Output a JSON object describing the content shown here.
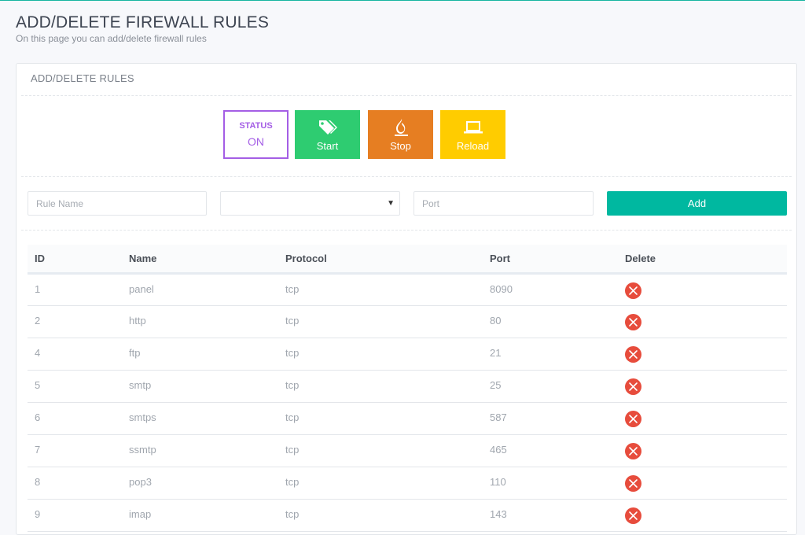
{
  "page": {
    "title": "ADD/DELETE FIREWALL RULES",
    "subtitle": "On this page you can add/delete firewall rules"
  },
  "panel": {
    "header": "ADD/DELETE RULES"
  },
  "controls": {
    "status_label": "STATUS",
    "status_value": "ON",
    "start_label": "Start",
    "stop_label": "Stop",
    "reload_label": "Reload",
    "start_icon": "tags-icon",
    "stop_icon": "fire-icon",
    "reload_icon": "laptop-icon"
  },
  "form": {
    "rule_name_placeholder": "Rule Name",
    "protocol_value": "",
    "port_placeholder": "Port",
    "add_label": "Add"
  },
  "colors": {
    "status": "#a45ee5",
    "start": "#2ecc71",
    "stop": "#e67e22",
    "reload": "#ffcc00",
    "add": "#00b8a0",
    "delete": "#e74c3c"
  },
  "table": {
    "headers": [
      "ID",
      "Name",
      "Protocol",
      "Port",
      "Delete"
    ],
    "rows": [
      {
        "id": "1",
        "name": "panel",
        "protocol": "tcp",
        "port": "8090"
      },
      {
        "id": "2",
        "name": "http",
        "protocol": "tcp",
        "port": "80"
      },
      {
        "id": "4",
        "name": "ftp",
        "protocol": "tcp",
        "port": "21"
      },
      {
        "id": "5",
        "name": "smtp",
        "protocol": "tcp",
        "port": "25"
      },
      {
        "id": "6",
        "name": "smtps",
        "protocol": "tcp",
        "port": "587"
      },
      {
        "id": "7",
        "name": "ssmtp",
        "protocol": "tcp",
        "port": "465"
      },
      {
        "id": "8",
        "name": "pop3",
        "protocol": "tcp",
        "port": "110"
      },
      {
        "id": "9",
        "name": "imap",
        "protocol": "tcp",
        "port": "143"
      }
    ]
  }
}
